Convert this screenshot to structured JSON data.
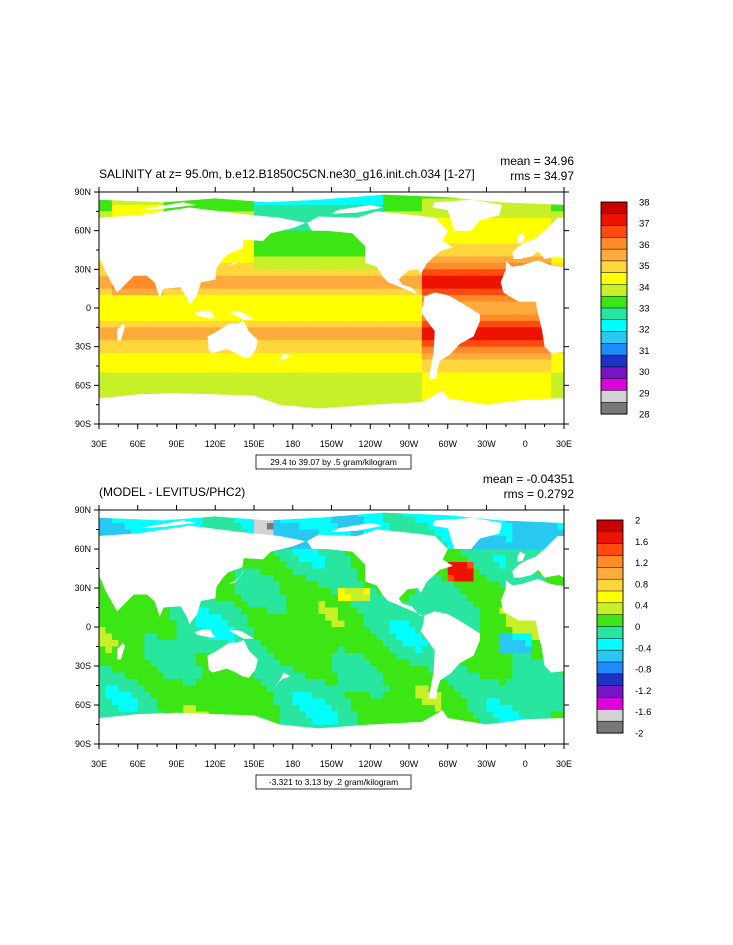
{
  "chart_data": [
    {
      "type": "heatmap",
      "title": "SALINITY at z=  95.0m, b.e12.B1850C5CN.ne30_g16.init.ch.034 [1-27]",
      "stats": {
        "mean": "mean = 34.96",
        "rms": "rms = 34.97"
      },
      "x_tick_labels": [
        "30E",
        "60E",
        "90E",
        "120E",
        "150E",
        "180",
        "150W",
        "120W",
        "90W",
        "60W",
        "30W",
        "0",
        "30E"
      ],
      "y_tick_labels": [
        "90N",
        "60N",
        "30N",
        "0",
        "30S",
        "60S",
        "90S"
      ],
      "xlim": [
        30,
        390
      ],
      "ylim": [
        -90,
        90
      ],
      "contour_info": "29.4 to 39.07 by .5 gram/kilogram",
      "colorbar": {
        "labels": [
          "38",
          "37",
          "36",
          "35",
          "34",
          "33",
          "32",
          "31",
          "30",
          "29",
          "28"
        ],
        "colors": [
          "#c80000",
          "#ee1200",
          "#ff4a10",
          "#ff8c28",
          "#ffaa3c",
          "#ffd73c",
          "#ffff00",
          "#c8f028",
          "#3ce614",
          "#28e6a0",
          "#00ffff",
          "#28c8f0",
          "#1e8cff",
          "#1e32c8",
          "#7814c8",
          "#dc00dc",
          "#d2d2d2",
          "#787878"
        ]
      }
    },
    {
      "type": "heatmap",
      "title": "(MODEL - LEVITUS/PHC2)",
      "stats": {
        "mean": "mean = -0.04351",
        "rms": "rms = 0.2792"
      },
      "x_tick_labels": [
        "30E",
        "60E",
        "90E",
        "120E",
        "150E",
        "180",
        "150W",
        "120W",
        "90W",
        "60W",
        "30W",
        "0",
        "30E"
      ],
      "y_tick_labels": [
        "90N",
        "60N",
        "30N",
        "0",
        "30S",
        "60S",
        "90S"
      ],
      "xlim": [
        30,
        390
      ],
      "ylim": [
        -90,
        90
      ],
      "contour_info": "-3.321 to 3.13 by .2 gram/kilogram",
      "colorbar": {
        "labels": [
          "2",
          "1.6",
          "1.2",
          "0.8",
          "0.4",
          "0",
          "-0.4",
          "-0.8",
          "-1.2",
          "-1.6",
          "-2"
        ],
        "colors": [
          "#c80000",
          "#ee1200",
          "#ff4a10",
          "#ff8c28",
          "#ffaa3c",
          "#ffd73c",
          "#ffff00",
          "#c8f028",
          "#3ce614",
          "#28e6a0",
          "#00ffff",
          "#28c8f0",
          "#1e8cff",
          "#1e32c8",
          "#7814c8",
          "#dc00dc",
          "#d2d2d2",
          "#787878"
        ]
      }
    }
  ]
}
